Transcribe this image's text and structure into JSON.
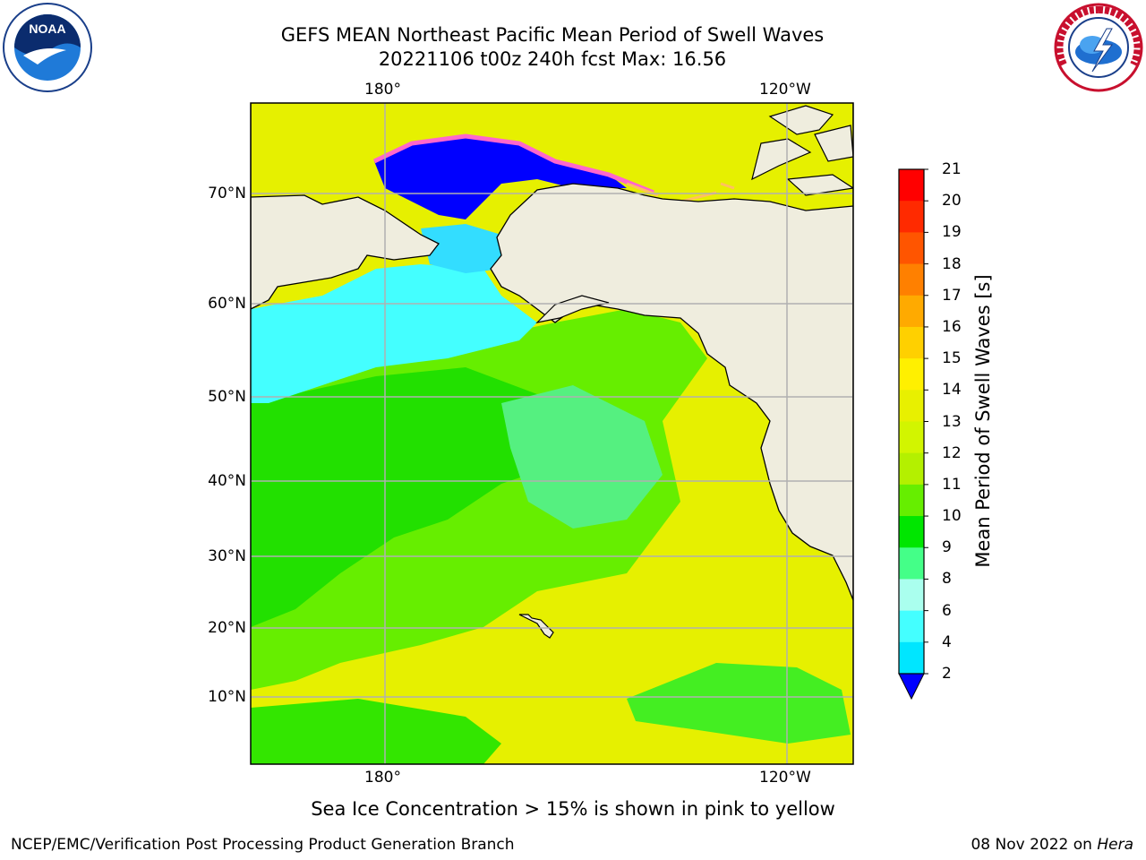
{
  "title": {
    "line1": "GEFS MEAN Northeast Pacific Mean Period of Swell Waves",
    "line2": "20221106 t00z 240h fcst   Max: 16.56"
  },
  "axes": {
    "lon_top": [
      "180°",
      "120°W"
    ],
    "lon_bottom": [
      "180°",
      "120°W"
    ],
    "lat": [
      "70°N",
      "60°N",
      "50°N",
      "40°N",
      "30°N",
      "20°N",
      "10°N"
    ]
  },
  "colorbar": {
    "label": "Mean Period of Swell Waves [s]",
    "ticks": [
      "21",
      "20",
      "19",
      "18",
      "17",
      "16",
      "15",
      "14",
      "13",
      "12",
      "11",
      "10",
      "9",
      "8",
      "6",
      "4",
      "2"
    ],
    "colors": [
      "#ff0000",
      "#ff2a00",
      "#ff5500",
      "#ff8000",
      "#ffaa00",
      "#ffd000",
      "#fff000",
      "#e8f000",
      "#d2f500",
      "#b4f000",
      "#66ee00",
      "#00e600",
      "#44ff88",
      "#aaffee",
      "#44ffff",
      "#00e6ff",
      "#0088ff",
      "#0000ff"
    ]
  },
  "colors": {
    "land": "#efedde",
    "ice_pink": "#ff66cc",
    "grid": "#b0b0b0"
  },
  "caption": "Sea Ice Concentration > 15% is shown in pink to yellow",
  "footer": {
    "left": "NCEP/EMC/Verification Post Processing Product Generation Branch",
    "right_date": "08 Nov 2022 on ",
    "right_machine": "Hera"
  },
  "logos": {
    "noaa_text": "NOAA",
    "nws_text": "NATIONAL WEATHER SERVICE"
  }
}
